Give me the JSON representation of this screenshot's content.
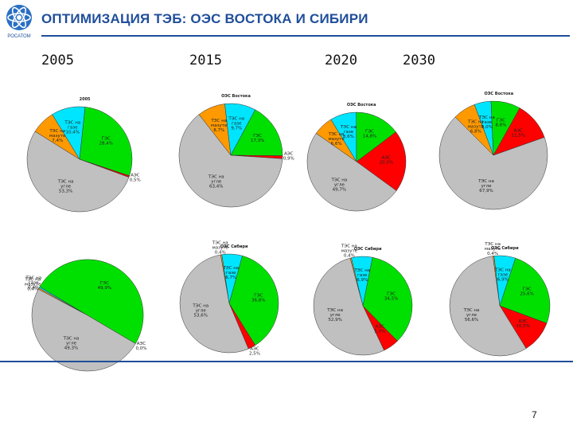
{
  "header": {
    "title": "ОПТИМИЗАЦИЯ ТЭБ: ОЭС ВОСТОКА  И СИБИРИ",
    "logo_text": "РОСАТОМ"
  },
  "years": [
    "2005",
    "2015",
    "2020",
    "2030"
  ],
  "page_number": "7",
  "colors": {
    "mazut": "#ff9900",
    "gaz": "#00e5ff",
    "ges": "#00e000",
    "aes": "#ff0000",
    "ugol": "#c0c0c0",
    "accent": "#1f4e9a"
  },
  "chart_data": [
    {
      "type": "pie",
      "id": "vostok-2005",
      "title": "2005",
      "slices": [
        {
          "label": "ТЭС на мазуте",
          "value": 7.4,
          "color": "#ff9900",
          "text": "ТЭС на мазуте 7,4%"
        },
        {
          "label": "ТЭС на газе",
          "value": 10.4,
          "color": "#00e5ff",
          "text": "ТЭС на газе 10,4%"
        },
        {
          "label": "ГЭС",
          "value": 28.4,
          "color": "#00e000",
          "text": "ГЭС 28,4%"
        },
        {
          "label": "АЭС",
          "value": 0.5,
          "color": "#ff0000",
          "text": "АЭС 0,5%"
        },
        {
          "label": "ТЭС на угле",
          "value": 53.3,
          "color": "#c0c0c0",
          "text": "ТЭС на угле 53,3%"
        }
      ]
    },
    {
      "type": "pie",
      "id": "vostok-2015",
      "title": "ОЭС Востока",
      "slices": [
        {
          "label": "ТЭС на мазуте",
          "value": 8.7,
          "color": "#ff9900",
          "text": "ТЭС на мазуте 8,7%"
        },
        {
          "label": "ТЭС на газе",
          "value": 9.7,
          "color": "#00e5ff",
          "text": "ТЭС на газе 9,7%"
        },
        {
          "label": "ГЭС",
          "value": 17.3,
          "color": "#00e000",
          "text": "ГЭС 17,3%"
        },
        {
          "label": "АЭС",
          "value": 0.9,
          "color": "#ff0000",
          "text": "АЭС 0,9%"
        },
        {
          "label": "ТЭС на угле",
          "value": 63.4,
          "color": "#c0c0c0",
          "text": "ТЭС на угле 63,4%"
        }
      ]
    },
    {
      "type": "pie",
      "id": "vostok-2020",
      "title": "ОЭС Востока",
      "slices": [
        {
          "label": "ТЭС на мазуте",
          "value": 6.6,
          "color": "#ff9900",
          "text": "ТЭС на мазуте 6,6%"
        },
        {
          "label": "ТЭС на газе",
          "value": 8.6,
          "color": "#00e5ff",
          "text": "ТЭС на газе 8,6%"
        },
        {
          "label": "ГЭС",
          "value": 14.8,
          "color": "#00e000",
          "text": "ГЭС 14,8%"
        },
        {
          "label": "АЭС",
          "value": 20.3,
          "color": "#ff0000",
          "text": "АЭС 20,3%"
        },
        {
          "label": "ТЭС на угле",
          "value": 49.7,
          "color": "#c0c0c0",
          "text": "ТЭС на угле 49,7%"
        }
      ]
    },
    {
      "type": "pie",
      "id": "vostok-2030",
      "title": "ОЭС Востока",
      "slices": [
        {
          "label": "ТЭС на мазуте",
          "value": 6.8,
          "color": "#ff9900",
          "text": "ТЭС на мазуте 6,8%"
        },
        {
          "label": "ТЭС на газе",
          "value": 5.0,
          "color": "#00e5ff",
          "text": "ТЭС на газе 5,0%"
        },
        {
          "label": "ГЭС",
          "value": 8.8,
          "color": "#00e000",
          "text": "ГЭС 8,8%"
        },
        {
          "label": "АЭС",
          "value": 11.5,
          "color": "#ff0000",
          "text": "АЭС 11,5%"
        },
        {
          "label": "ТЭС на угле",
          "value": 67.9,
          "color": "#c0c0c0",
          "text": "ТЭС на угле 67,9%"
        }
      ]
    },
    {
      "type": "pie",
      "id": "sibir-2005",
      "title": "",
      "slices": [
        {
          "label": "ТЭС на мазуте",
          "value": 0.4,
          "color": "#ff9900",
          "text": "ТЭС на мазуте 0,4%"
        },
        {
          "label": "ТЭС на газе",
          "value": 0.4,
          "color": "#00e5ff",
          "text": "ТЭС на газе 0,4%"
        },
        {
          "label": "ГЭС",
          "value": 49.9,
          "color": "#00e000",
          "text": "ГЭС 49,9%"
        },
        {
          "label": "АЭС",
          "value": 0.0,
          "color": "#ff0000",
          "text": "АЭС 0,0%"
        },
        {
          "label": "ТЭС на угле",
          "value": 49.3,
          "color": "#c0c0c0",
          "text": "ТЭС на угле 49,3%"
        }
      ]
    },
    {
      "type": "pie",
      "id": "sibir-2015",
      "title": "ОЭС Сибири",
      "slices": [
        {
          "label": "ТЭС на мазуте",
          "value": 0.4,
          "color": "#ff9900",
          "text": "ТЭС на мазуте 0,4%"
        },
        {
          "label": "ТЭС на газе",
          "value": 6.7,
          "color": "#00e5ff",
          "text": "ТЭС на газе 6,7%"
        },
        {
          "label": "ГЭС",
          "value": 36.8,
          "color": "#00e000",
          "text": "ГЭС 36,8%"
        },
        {
          "label": "АЭС",
          "value": 2.5,
          "color": "#ff0000",
          "text": "АЭС 2,5%"
        },
        {
          "label": "ТЭС на угле",
          "value": 53.6,
          "color": "#c0c0c0",
          "text": "ТЭС на угле 53,6%"
        }
      ]
    },
    {
      "type": "pie",
      "id": "sibir-2020",
      "title": "ОЭС Сибири",
      "slices": [
        {
          "label": "ТЭС на мазуте",
          "value": 0.4,
          "color": "#ff9900",
          "text": "ТЭС на мазуте 0,4%"
        },
        {
          "label": "ТЭС на газе",
          "value": 6.9,
          "color": "#00e5ff",
          "text": "ТЭС на газе 6,9%"
        },
        {
          "label": "ГЭС",
          "value": 34.5,
          "color": "#00e000",
          "text": "ГЭС 34,5%"
        },
        {
          "label": "АЭС",
          "value": 5.3,
          "color": "#ff0000",
          "text": "АЭС 5,3%"
        },
        {
          "label": "ТЭС на угле",
          "value": 52.9,
          "color": "#c0c0c0",
          "text": "ТЭС на угле 52,9%"
        }
      ]
    },
    {
      "type": "pie",
      "id": "sibir-2030",
      "title": "ОЭС Сибири",
      "slices": [
        {
          "label": "ТЭС на мазуте",
          "value": 0.4,
          "color": "#ff9900",
          "text": "ТЭС на мазуте 0,4%"
        },
        {
          "label": "ТЭС на газе",
          "value": 6.9,
          "color": "#00e5ff",
          "text": "ТЭС на газе 6,9%"
        },
        {
          "label": "ГЭС",
          "value": 25.6,
          "color": "#00e000",
          "text": "ГЭС 25,6%"
        },
        {
          "label": "АЭС",
          "value": 10.5,
          "color": "#ff0000",
          "text": "АЭС 10,5%"
        },
        {
          "label": "ТЭС на угле",
          "value": 56.6,
          "color": "#c0c0c0",
          "text": "ТЭС на угле 56,6%"
        }
      ]
    }
  ]
}
